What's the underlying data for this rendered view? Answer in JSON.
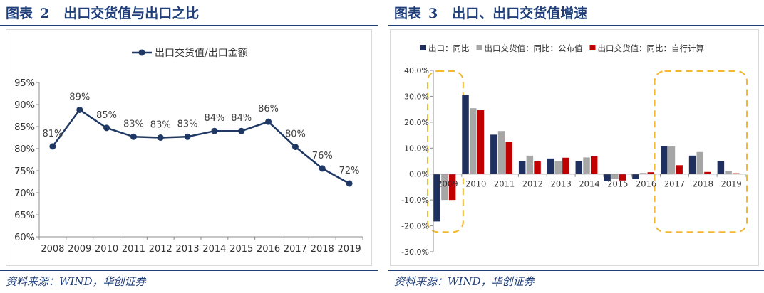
{
  "left_figure": {
    "label": "图表",
    "number": "2",
    "title": "出口交货值与出口之比",
    "source": "资料来源：WIND，华创证券"
  },
  "right_figure": {
    "label": "图表",
    "number": "3",
    "title": "出口、出口交货值增速",
    "source": "资料来源：WIND，华创证券"
  },
  "colors": {
    "title_blue": "#1f3f7a",
    "line": "#1f3864",
    "export_bar": "#1f2f5e",
    "published_bar": "#a6a6a6",
    "calculated_bar": "#c00000",
    "highlight": "#f2b830"
  },
  "chart_data": [
    {
      "type": "line",
      "title": "",
      "legend": [
        "出口交货值/出口金额"
      ],
      "legend_position": "top",
      "categories": [
        "2008",
        "2009",
        "2010",
        "2011",
        "2012",
        "2013",
        "2014",
        "2015",
        "2016",
        "2017",
        "2018",
        "2019"
      ],
      "series": [
        {
          "name": "出口交货值/出口金额",
          "values": [
            80.5,
            88.8,
            84.7,
            82.7,
            82.5,
            82.7,
            84.0,
            84.0,
            86.1,
            80.4,
            75.5,
            72.1
          ]
        }
      ],
      "data_labels": [
        "81%",
        "89%",
        "85%",
        "83%",
        "83%",
        "83%",
        "84%",
        "84%",
        "86%",
        "80%",
        "76%",
        "72%"
      ],
      "yticks": [
        60,
        65,
        70,
        75,
        80,
        85,
        90,
        95
      ],
      "ytick_labels": [
        "60%",
        "65%",
        "70%",
        "75%",
        "80%",
        "85%",
        "90%",
        "95%"
      ],
      "ylim": [
        60,
        95
      ],
      "grid": false
    },
    {
      "type": "bar",
      "title": "",
      "legend_position": "top",
      "categories": [
        "2009",
        "2010",
        "2011",
        "2012",
        "2013",
        "2014",
        "2015",
        "2016",
        "2017",
        "2018",
        "2019"
      ],
      "series": [
        {
          "name": "出口：同比",
          "values": [
            -18.3,
            30.5,
            15.2,
            5.0,
            6.0,
            5.0,
            -2.8,
            -2.0,
            10.8,
            7.1,
            5.0
          ]
        },
        {
          "name": "出口交货值：同比：公布值",
          "values": [
            -10.0,
            25.4,
            16.6,
            7.1,
            5.0,
            6.4,
            -1.8,
            0.4,
            10.7,
            8.5,
            1.3
          ]
        },
        {
          "name": "出口交货值：同比：自行计算",
          "values": [
            -10.0,
            24.7,
            12.4,
            4.9,
            6.3,
            6.8,
            -2.5,
            0.7,
            3.4,
            0.8,
            0.3
          ]
        }
      ],
      "yticks": [
        -30,
        -20,
        -10,
        0,
        10,
        20,
        30,
        40
      ],
      "ytick_labels": [
        "-30.0%",
        "-20.0%",
        "-10.0%",
        "0.0%",
        "10.0%",
        "20.0%",
        "30.0%",
        "40.0%"
      ],
      "ylim": [
        -30,
        40
      ],
      "highlighted_categories": [
        [
          "2009"
        ],
        [
          "2017",
          "2018",
          "2019"
        ]
      ],
      "grid": false
    }
  ]
}
